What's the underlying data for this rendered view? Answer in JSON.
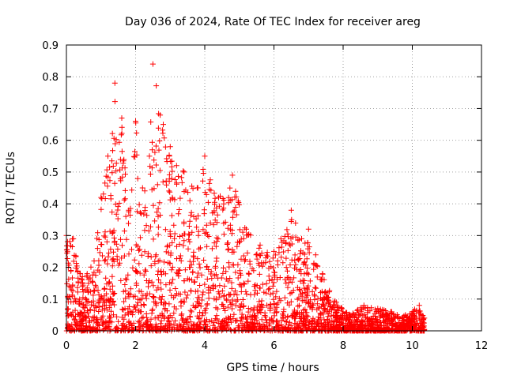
{
  "chart_data": {
    "type": "scatter",
    "title": "Day 036 of 2024, Rate Of TEC Index for receiver areg",
    "xlabel": "GPS time / hours",
    "ylabel": "ROTI / TECUs",
    "xlim": [
      0,
      12
    ],
    "ylim": [
      0,
      0.9
    ],
    "xticks": [
      "0",
      "2",
      "4",
      "6",
      "8",
      "10",
      "12"
    ],
    "yticks": [
      "0",
      "0.1",
      "0.2",
      "0.3",
      "0.4",
      "0.5",
      "0.6",
      "0.7",
      "0.8",
      "0.9"
    ],
    "grid": true,
    "marker": "+",
    "color": "#ff0000",
    "envelope": [
      [
        0.0,
        0.3
      ],
      [
        0.2,
        0.29
      ],
      [
        0.4,
        0.18
      ],
      [
        0.6,
        0.18
      ],
      [
        0.8,
        0.22
      ],
      [
        1.0,
        0.42
      ],
      [
        1.2,
        0.55
      ],
      [
        1.4,
        0.78
      ],
      [
        1.6,
        0.67
      ],
      [
        1.8,
        0.38
      ],
      [
        2.0,
        0.66
      ],
      [
        2.2,
        0.45
      ],
      [
        2.4,
        0.55
      ],
      [
        2.5,
        0.84
      ],
      [
        2.8,
        0.65
      ],
      [
        3.0,
        0.58
      ],
      [
        3.4,
        0.5
      ],
      [
        3.8,
        0.45
      ],
      [
        4.0,
        0.55
      ],
      [
        4.4,
        0.42
      ],
      [
        4.8,
        0.49
      ],
      [
        5.2,
        0.32
      ],
      [
        5.6,
        0.27
      ],
      [
        6.0,
        0.25
      ],
      [
        6.2,
        0.29
      ],
      [
        6.5,
        0.38
      ],
      [
        6.8,
        0.29
      ],
      [
        7.0,
        0.32
      ],
      [
        7.4,
        0.18
      ],
      [
        7.8,
        0.09
      ],
      [
        8.2,
        0.05
      ],
      [
        8.6,
        0.08
      ],
      [
        9.0,
        0.07
      ],
      [
        9.4,
        0.06
      ],
      [
        9.8,
        0.05
      ],
      [
        10.2,
        0.08
      ],
      [
        10.35,
        0.04
      ]
    ],
    "data_range": [
      0.0,
      10.35
    ]
  }
}
